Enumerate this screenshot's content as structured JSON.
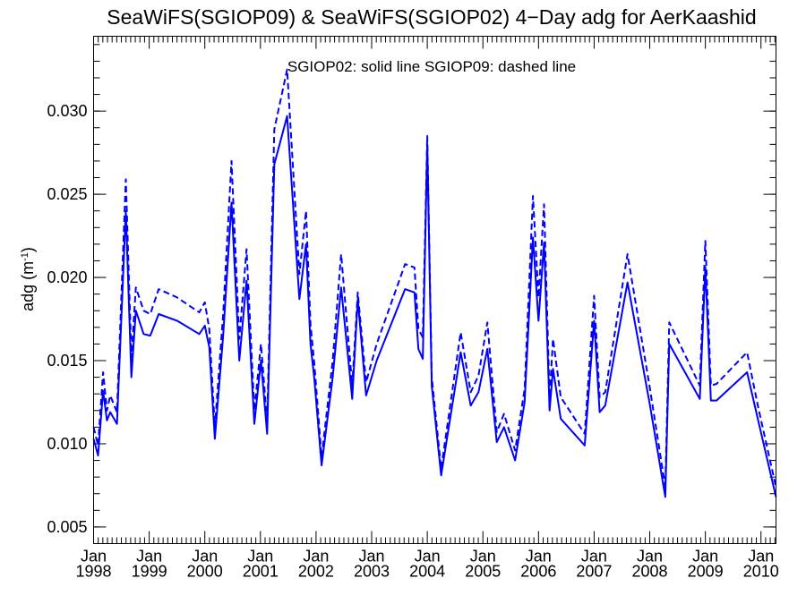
{
  "chart_data": {
    "type": "line",
    "title": "SeaWiFS(SGIOP09) & SeaWiFS(SGIOP02) 4−Day adg for AerKaashid",
    "annotation": "SGIOP02: solid line   SGIOP09: dashed line",
    "ylabel": "adg (m",
    "ylabel_sup": "-1",
    "ylabel_close": ")",
    "xlim": [
      1998.0,
      2010.27
    ],
    "ylim": [
      0.004,
      0.0345
    ],
    "y_ticks": [
      0.005,
      0.01,
      0.015,
      0.02,
      0.025,
      0.03
    ],
    "y_tick_labels": [
      "0.005",
      "0.010",
      "0.015",
      "0.020",
      "0.025",
      "0.030"
    ],
    "x_ticks": [
      1998,
      1999,
      2000,
      2001,
      2002,
      2003,
      2004,
      2005,
      2006,
      2007,
      2008,
      2009,
      2010
    ],
    "x_tick_months": [
      "Jan",
      "Jan",
      "Jan",
      "Jan",
      "Jan",
      "Jan",
      "Jan",
      "Jan",
      "Jan",
      "Jan",
      "Jan",
      "Jan",
      "Jan"
    ],
    "x_tick_years": [
      "1998",
      "1999",
      "2000",
      "2001",
      "2002",
      "2003",
      "2004",
      "2005",
      "2006",
      "2007",
      "2008",
      "2009",
      "2010"
    ],
    "color": "#0000ff",
    "series": [
      {
        "name": "SGIOP02",
        "style": "solid",
        "x": [
          1998.0,
          1998.08,
          1998.17,
          1998.24,
          1998.3,
          1998.42,
          1998.58,
          1998.68,
          1998.76,
          1998.9,
          1999.02,
          1999.17,
          1999.5,
          1999.9,
          2000.0,
          2000.08,
          2000.18,
          2000.33,
          2000.48,
          2000.62,
          2000.75,
          2000.89,
          2001.01,
          2001.12,
          2001.25,
          2001.48,
          2001.7,
          2001.82,
          2001.9,
          2001.97,
          2002.1,
          2002.3,
          2002.45,
          2002.65,
          2002.75,
          2002.9,
          2003.09,
          2003.6,
          2003.77,
          2003.84,
          2003.92,
          2004.0,
          2004.08,
          2004.25,
          2004.6,
          2004.78,
          2004.92,
          2005.08,
          2005.25,
          2005.38,
          2005.58,
          2005.75,
          2005.9,
          2006.0,
          2006.1,
          2006.2,
          2006.26,
          2006.4,
          2006.83,
          2007.0,
          2007.1,
          2007.2,
          2007.6,
          2008.0,
          2008.28,
          2008.35,
          2008.9,
          2009.0,
          2009.1,
          2009.2,
          2009.75,
          2009.95,
          2010.27
        ],
        "y": [
          0.0103,
          0.0093,
          0.0132,
          0.0114,
          0.0119,
          0.0112,
          0.024,
          0.014,
          0.018,
          0.0166,
          0.0165,
          0.0178,
          0.0174,
          0.0166,
          0.0171,
          0.0158,
          0.0103,
          0.0165,
          0.0245,
          0.015,
          0.0198,
          0.0112,
          0.015,
          0.0106,
          0.0268,
          0.0297,
          0.0187,
          0.022,
          0.016,
          0.0139,
          0.0087,
          0.014,
          0.0194,
          0.0127,
          0.0187,
          0.0129,
          0.015,
          0.0193,
          0.0191,
          0.0157,
          0.0151,
          0.028,
          0.0135,
          0.0081,
          0.0155,
          0.0123,
          0.0131,
          0.0157,
          0.0101,
          0.011,
          0.009,
          0.0125,
          0.0224,
          0.0174,
          0.0221,
          0.012,
          0.0145,
          0.0115,
          0.0099,
          0.0174,
          0.0119,
          0.0123,
          0.0197,
          0.0124,
          0.0068,
          0.016,
          0.0127,
          0.0206,
          0.0126,
          0.0126,
          0.0143,
          0.0114,
          0.0068
        ]
      },
      {
        "name": "SGIOP09",
        "style": "dashed",
        "x": [
          1998.0,
          1998.08,
          1998.17,
          1998.24,
          1998.3,
          1998.42,
          1998.58,
          1998.68,
          1998.76,
          1998.9,
          1999.02,
          1999.17,
          1999.5,
          1999.9,
          2000.0,
          2000.08,
          2000.18,
          2000.33,
          2000.48,
          2000.62,
          2000.75,
          2000.89,
          2001.01,
          2001.12,
          2001.25,
          2001.48,
          2001.7,
          2001.82,
          2001.9,
          2001.97,
          2002.1,
          2002.3,
          2002.45,
          2002.65,
          2002.75,
          2002.9,
          2003.09,
          2003.6,
          2003.77,
          2003.84,
          2003.92,
          2004.0,
          2004.08,
          2004.25,
          2004.6,
          2004.78,
          2004.92,
          2005.08,
          2005.25,
          2005.38,
          2005.58,
          2005.75,
          2005.9,
          2006.0,
          2006.1,
          2006.2,
          2006.26,
          2006.4,
          2006.83,
          2007.0,
          2007.1,
          2007.2,
          2007.6,
          2008.0,
          2008.28,
          2008.35,
          2008.9,
          2009.0,
          2009.1,
          2009.2,
          2009.75,
          2009.95,
          2010.27
        ],
        "y": [
          0.011,
          0.0099,
          0.0143,
          0.012,
          0.0129,
          0.0119,
          0.0259,
          0.0152,
          0.0194,
          0.018,
          0.0178,
          0.0193,
          0.0188,
          0.0179,
          0.0185,
          0.0169,
          0.011,
          0.0178,
          0.027,
          0.0163,
          0.0217,
          0.012,
          0.016,
          0.0113,
          0.0289,
          0.0325,
          0.0202,
          0.024,
          0.0172,
          0.0148,
          0.0092,
          0.015,
          0.0214,
          0.0135,
          0.0191,
          0.0137,
          0.016,
          0.0208,
          0.0206,
          0.0169,
          0.0164,
          0.0285,
          0.014,
          0.0085,
          0.0167,
          0.0131,
          0.0141,
          0.0173,
          0.0107,
          0.0118,
          0.0096,
          0.0133,
          0.0249,
          0.0188,
          0.0244,
          0.0128,
          0.0163,
          0.0128,
          0.0106,
          0.0189,
          0.0128,
          0.0131,
          0.0214,
          0.0134,
          0.0074,
          0.0173,
          0.0135,
          0.0222,
          0.0135,
          0.0136,
          0.0155,
          0.0122,
          0.0074
        ]
      }
    ]
  }
}
